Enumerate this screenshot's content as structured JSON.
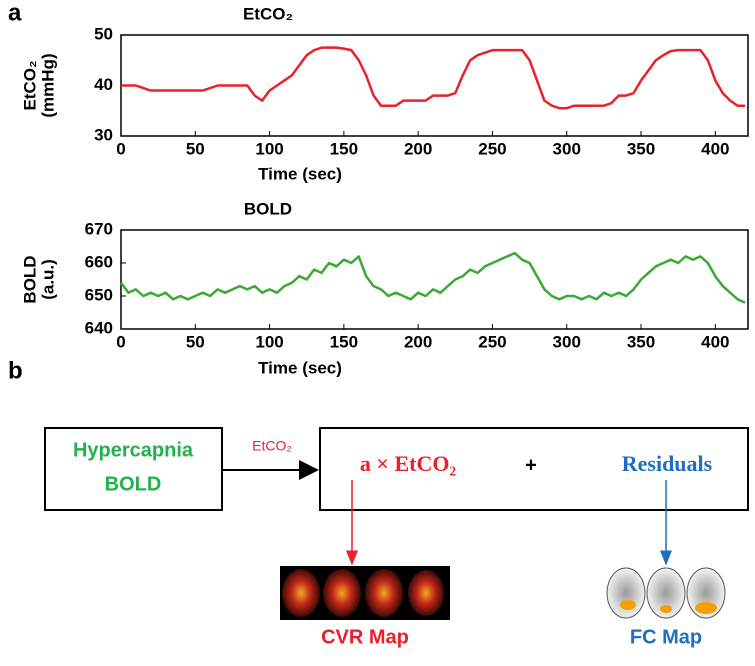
{
  "panel_labels": [
    "a",
    "b"
  ],
  "chart_data": [
    {
      "type": "line",
      "title": "EtCO₂",
      "xlabel": "Time (sec)",
      "ylabel": [
        "EtCO₂",
        "(mmHg)"
      ],
      "xlim": [
        0,
        422
      ],
      "xticks": [
        0,
        50,
        100,
        150,
        200,
        250,
        300,
        350,
        400
      ],
      "ylim": [
        30,
        50
      ],
      "yticks": [
        30,
        40,
        50
      ],
      "x": [
        0,
        5,
        10,
        15,
        20,
        25,
        30,
        35,
        40,
        45,
        50,
        55,
        60,
        65,
        70,
        75,
        80,
        85,
        90,
        95,
        100,
        105,
        110,
        115,
        120,
        125,
        130,
        135,
        140,
        145,
        150,
        155,
        160,
        165,
        170,
        175,
        180,
        185,
        190,
        195,
        200,
        205,
        210,
        215,
        220,
        225,
        230,
        235,
        240,
        245,
        250,
        255,
        260,
        265,
        270,
        275,
        280,
        285,
        290,
        295,
        300,
        305,
        310,
        315,
        320,
        325,
        330,
        335,
        340,
        345,
        350,
        355,
        360,
        365,
        370,
        375,
        380,
        385,
        390,
        395,
        400,
        405,
        410,
        415,
        420
      ],
      "series": [
        {
          "name": "EtCO₂",
          "color": "#e8212a",
          "values": [
            40,
            40,
            40,
            39.5,
            39,
            39,
            39,
            39,
            39,
            39,
            39,
            39,
            39.5,
            40,
            40,
            40,
            40,
            40,
            38,
            37,
            39,
            40,
            41,
            42,
            44,
            46,
            47,
            47.5,
            47.5,
            47.5,
            47.3,
            47,
            45,
            42,
            38,
            36,
            36,
            36,
            37,
            37,
            37,
            37,
            38,
            38,
            38,
            38.5,
            42,
            45,
            46,
            46.5,
            47,
            47,
            47,
            47,
            47,
            45,
            41,
            37,
            36,
            35.5,
            35.5,
            36,
            36,
            36,
            36,
            36,
            36.5,
            38,
            38,
            38.5,
            41,
            43,
            45,
            46,
            46.8,
            47,
            47,
            47,
            47,
            45,
            41,
            38.5,
            37,
            36,
            36
          ]
        }
      ]
    },
    {
      "type": "line",
      "title": "BOLD",
      "xlabel": "Time (sec)",
      "ylabel": [
        "BOLD",
        "(a.u.)"
      ],
      "xlim": [
        0,
        422
      ],
      "xticks": [
        0,
        50,
        100,
        150,
        200,
        250,
        300,
        350,
        400
      ],
      "ylim": [
        640,
        670
      ],
      "yticks": [
        640,
        650,
        660,
        670
      ],
      "x": [
        0,
        5,
        10,
        15,
        20,
        25,
        30,
        35,
        40,
        45,
        50,
        55,
        60,
        65,
        70,
        75,
        80,
        85,
        90,
        95,
        100,
        105,
        110,
        115,
        120,
        125,
        130,
        135,
        140,
        145,
        150,
        155,
        160,
        165,
        170,
        175,
        180,
        185,
        190,
        195,
        200,
        205,
        210,
        215,
        220,
        225,
        230,
        235,
        240,
        245,
        250,
        255,
        260,
        265,
        270,
        275,
        280,
        285,
        290,
        295,
        300,
        305,
        310,
        315,
        320,
        325,
        330,
        335,
        340,
        345,
        350,
        355,
        360,
        365,
        370,
        375,
        380,
        385,
        390,
        395,
        400,
        405,
        410,
        415,
        420
      ],
      "series": [
        {
          "name": "BOLD",
          "color": "#3aaa35",
          "values": [
            654,
            651,
            652,
            650,
            651,
            650,
            651,
            649,
            650,
            649,
            650,
            651,
            650,
            652,
            651,
            652,
            653,
            652,
            653,
            651,
            652,
            651,
            653,
            654,
            656,
            655,
            658,
            657,
            660,
            659,
            661,
            660,
            662,
            656,
            653,
            652,
            650,
            651,
            650,
            649,
            651,
            650,
            652,
            651,
            653,
            655,
            656,
            658,
            657,
            659,
            660,
            661,
            662,
            663,
            661,
            660,
            656,
            652,
            650,
            649,
            650,
            650,
            649,
            650,
            649,
            651,
            650,
            651,
            650,
            652,
            655,
            657,
            659,
            660,
            661,
            660,
            662,
            661,
            662,
            660,
            656,
            653,
            651,
            649,
            648
          ]
        }
      ]
    }
  ],
  "diagram": {
    "input": [
      "Hypercapnia",
      "BOLD"
    ],
    "arrow_label": "EtCO₂",
    "term1": "a × EtCO₂",
    "plus": "+",
    "term2": "Residuals",
    "map1": "CVR Map",
    "map2": "FC Map"
  }
}
